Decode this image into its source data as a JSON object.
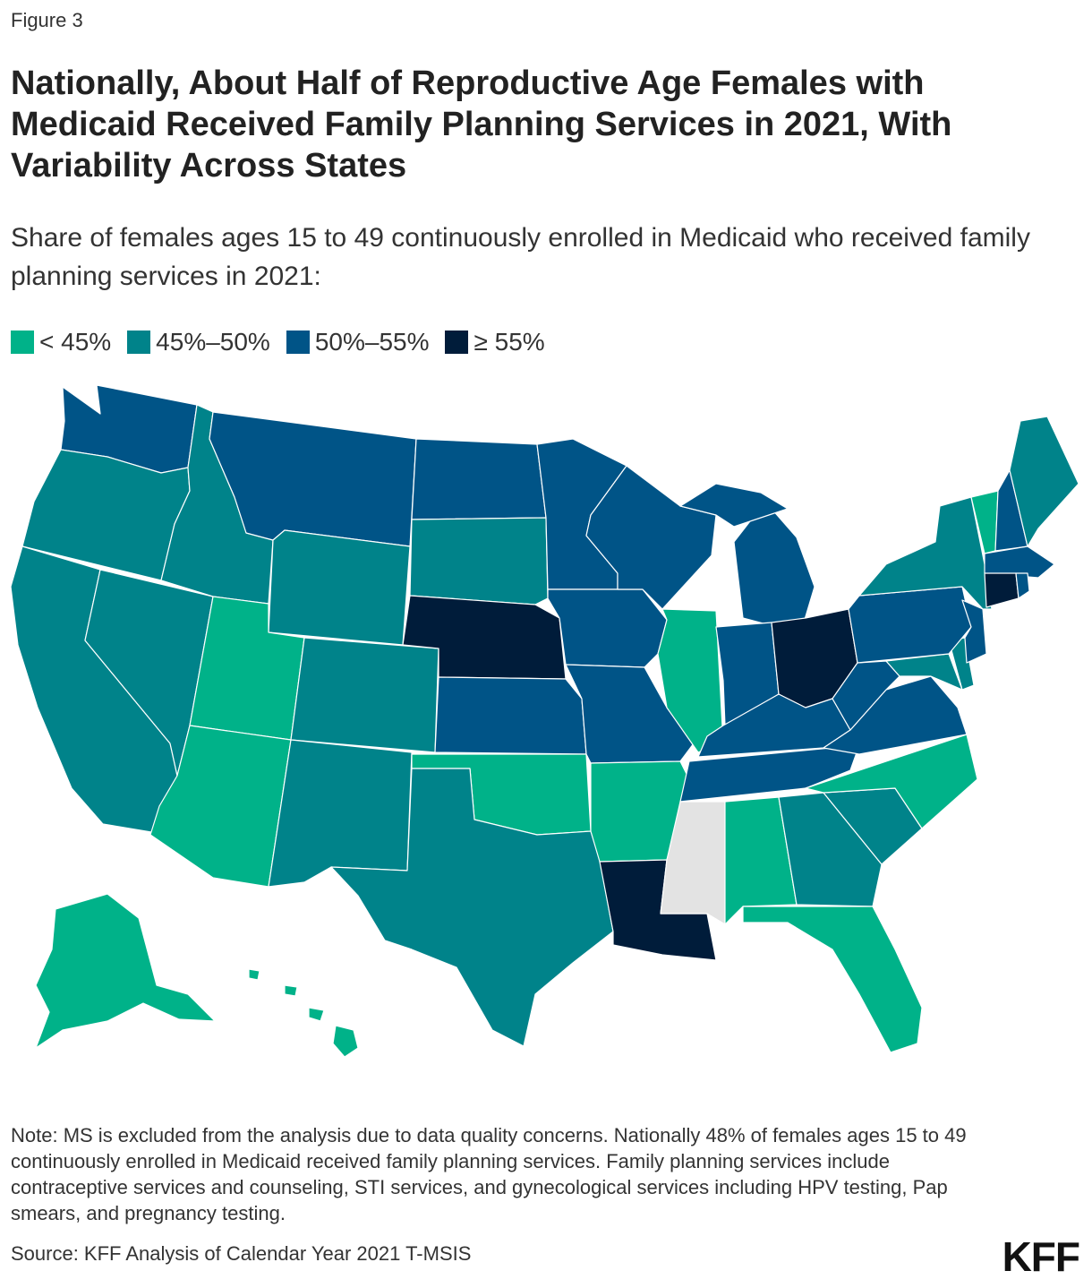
{
  "figure_label": "Figure 3",
  "title": "Nationally, About Half of Reproductive Age Females with Medicaid Received Family Planning Services in 2021, With Variability Across States",
  "subtitle": "Share of females ages 15 to 49 continuously enrolled in Medicaid who received family planning services in 2021:",
  "legend": [
    {
      "label": "< 45%",
      "color": "#00b289"
    },
    {
      "label": "45%–50%",
      "color": "#00838a"
    },
    {
      "label": "50%–55%",
      "color": "#005487"
    },
    {
      "label": "≥ 55%",
      "color": "#001c3a"
    }
  ],
  "colors": {
    "lt45": "#00b289",
    "45_50": "#00838a",
    "50_55": "#005487",
    "ge55": "#001c3a",
    "excluded": "#e3e3e3"
  },
  "chart_data": {
    "type": "choropleth",
    "title": "Nationally, About Half of Reproductive Age Females with Medicaid Received Family Planning Services in 2021, With Variability Across States",
    "categories": [
      "< 45%",
      "45%–50%",
      "50%–55%",
      "≥ 55%"
    ],
    "national_value": "48%",
    "states": {
      "WA": "50%–55%",
      "OR": "45%–50%",
      "CA": "45%–50%",
      "NV": "45%–50%",
      "ID": "45%–50%",
      "MT": "50%–55%",
      "WY": "45%–50%",
      "UT": "< 45%",
      "AZ": "< 45%",
      "CO": "45%–50%",
      "NM": "45%–50%",
      "ND": "50%–55%",
      "SD": "45%–50%",
      "NE": "≥ 55%",
      "KS": "50%–55%",
      "OK": "< 45%",
      "TX": "45%–50%",
      "MN": "50%–55%",
      "IA": "50%–55%",
      "MO": "50%–55%",
      "AR": "< 45%",
      "LA": "≥ 55%",
      "WI": "50%–55%",
      "IL": "< 45%",
      "MI": "50%–55%",
      "IN": "50%–55%",
      "OH": "≥ 55%",
      "KY": "50%–55%",
      "TN": "50%–55%",
      "MS": "excluded",
      "AL": "< 45%",
      "GA": "45%–50%",
      "FL": "< 45%",
      "SC": "45%–50%",
      "NC": "< 45%",
      "VA": "50%–55%",
      "WV": "50%–55%",
      "PA": "50%–55%",
      "NY": "45%–50%",
      "NJ": "50%–55%",
      "DE": "45%–50%",
      "MD": "45%–50%",
      "CT": "≥ 55%",
      "RI": "50%–55%",
      "MA": "50%–55%",
      "VT": "< 45%",
      "NH": "50%–55%",
      "ME": "45%–50%",
      "AK": "< 45%",
      "HI": "< 45%"
    }
  },
  "note": "Note: MS is excluded from the analysis due to data quality concerns. Nationally 48% of females ages 15 to 49 continuously enrolled in Medicaid received family planning services. Family planning services include contraceptive services and counseling, STI services, and gynecological services including HPV testing, Pap smears, and pregnancy testing.",
  "source": "Source: KFF Analysis of Calendar Year 2021 T-MSIS",
  "logo": "KFF"
}
